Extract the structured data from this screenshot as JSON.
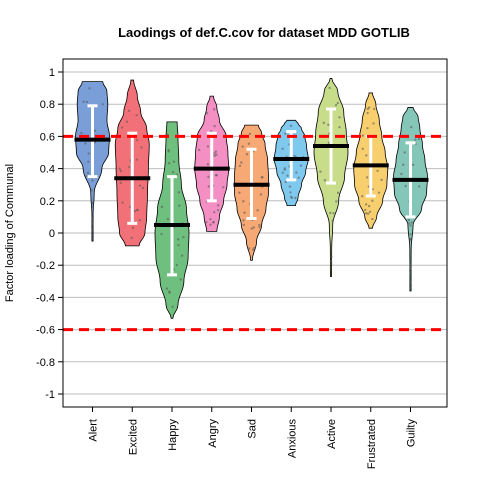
{
  "chart_data": {
    "type": "violin",
    "title": "Laodings of def.C.cov for dataset MDD GOTLIB",
    "ylabel": "Factor loading of Communal",
    "xlabel": "",
    "ylim": [
      -1.05,
      1.05
    ],
    "yticks": [
      -1,
      -0.8,
      -0.6,
      -0.4,
      -0.2,
      0,
      0.2,
      0.4,
      0.6,
      0.8,
      1
    ],
    "ytick_labels": [
      "-1",
      "-0.8",
      "-0.6",
      "-0.4",
      "-0.2",
      "0",
      "0.2",
      "0.4",
      "0.6",
      "0.8",
      "1"
    ],
    "grid": true,
    "reference_lines": [
      0.6,
      -0.6
    ],
    "reference_line_color": "#ff0000",
    "categories": [
      "Alert",
      "Excited",
      "Happy",
      "Angry",
      "Sad",
      "Anxious",
      "Active",
      "Frustrated",
      "Guilty"
    ],
    "series": [
      {
        "category": "Alert",
        "color": "#7a9fd8",
        "median": 0.58,
        "mean_minus_sd": 0.35,
        "mean_plus_sd": 0.79,
        "min": -0.05,
        "max": 0.94,
        "density_profile": [
          [
            -0.05,
            0.01
          ],
          [
            0.1,
            0.03
          ],
          [
            0.25,
            0.1
          ],
          [
            0.4,
            0.55
          ],
          [
            0.5,
            0.95
          ],
          [
            0.6,
            1.0
          ],
          [
            0.7,
            0.85
          ],
          [
            0.8,
            0.9
          ],
          [
            0.88,
            0.85
          ],
          [
            0.94,
            0.6
          ]
        ]
      },
      {
        "category": "Excited",
        "color": "#f27178",
        "median": 0.34,
        "mean_minus_sd": 0.06,
        "mean_plus_sd": 0.62,
        "min": -0.08,
        "max": 0.95,
        "density_profile": [
          [
            -0.08,
            0.4
          ],
          [
            0.0,
            0.75
          ],
          [
            0.1,
            0.85
          ],
          [
            0.25,
            0.9
          ],
          [
            0.4,
            0.95
          ],
          [
            0.55,
            1.0
          ],
          [
            0.65,
            0.85
          ],
          [
            0.75,
            0.5
          ],
          [
            0.85,
            0.3
          ],
          [
            0.95,
            0.08
          ]
        ]
      },
      {
        "category": "Happy",
        "color": "#6fbf7f",
        "median": 0.05,
        "mean_minus_sd": -0.26,
        "mean_plus_sd": 0.35,
        "min": -0.53,
        "max": 0.69,
        "density_profile": [
          [
            -0.53,
            0.05
          ],
          [
            -0.45,
            0.35
          ],
          [
            -0.3,
            0.7
          ],
          [
            -0.15,
            0.95
          ],
          [
            0.0,
            1.0
          ],
          [
            0.15,
            0.85
          ],
          [
            0.3,
            0.55
          ],
          [
            0.45,
            0.4
          ],
          [
            0.6,
            0.35
          ],
          [
            0.69,
            0.3
          ]
        ]
      },
      {
        "category": "Angry",
        "color": "#f48fc3",
        "median": 0.4,
        "mean_minus_sd": 0.2,
        "mean_plus_sd": 0.62,
        "min": 0.01,
        "max": 0.85,
        "density_profile": [
          [
            0.01,
            0.3
          ],
          [
            0.1,
            0.45
          ],
          [
            0.2,
            0.7
          ],
          [
            0.3,
            0.9
          ],
          [
            0.4,
            1.0
          ],
          [
            0.5,
            0.95
          ],
          [
            0.6,
            0.85
          ],
          [
            0.7,
            0.45
          ],
          [
            0.78,
            0.3
          ],
          [
            0.85,
            0.1
          ]
        ]
      },
      {
        "category": "Sad",
        "color": "#f6a875",
        "median": 0.3,
        "mean_minus_sd": 0.09,
        "mean_plus_sd": 0.52,
        "min": -0.17,
        "max": 0.67,
        "density_profile": [
          [
            -0.17,
            0.05
          ],
          [
            -0.05,
            0.3
          ],
          [
            0.05,
            0.6
          ],
          [
            0.15,
            0.85
          ],
          [
            0.25,
            1.0
          ],
          [
            0.35,
            1.0
          ],
          [
            0.45,
            0.95
          ],
          [
            0.55,
            0.8
          ],
          [
            0.62,
            0.6
          ],
          [
            0.67,
            0.4
          ]
        ]
      },
      {
        "category": "Anxious",
        "color": "#7fc8ee",
        "median": 0.46,
        "mean_minus_sd": 0.33,
        "mean_plus_sd": 0.63,
        "min": 0.17,
        "max": 0.7,
        "density_profile": [
          [
            0.17,
            0.25
          ],
          [
            0.22,
            0.4
          ],
          [
            0.3,
            0.6
          ],
          [
            0.38,
            0.85
          ],
          [
            0.46,
            1.0
          ],
          [
            0.54,
            0.9
          ],
          [
            0.6,
            0.8
          ],
          [
            0.65,
            0.6
          ],
          [
            0.68,
            0.4
          ],
          [
            0.7,
            0.25
          ]
        ]
      },
      {
        "category": "Active",
        "color": "#c7dd8a",
        "median": 0.54,
        "mean_minus_sd": 0.31,
        "mean_plus_sd": 0.77,
        "min": -0.27,
        "max": 0.96,
        "density_profile": [
          [
            -0.27,
            0.02
          ],
          [
            -0.1,
            0.04
          ],
          [
            0.05,
            0.1
          ],
          [
            0.2,
            0.45
          ],
          [
            0.35,
            0.8
          ],
          [
            0.5,
            1.0
          ],
          [
            0.62,
            0.9
          ],
          [
            0.75,
            0.75
          ],
          [
            0.88,
            0.4
          ],
          [
            0.96,
            0.05
          ]
        ]
      },
      {
        "category": "Frustrated",
        "color": "#f8cf6e",
        "median": 0.42,
        "mean_minus_sd": 0.23,
        "mean_plus_sd": 0.6,
        "min": 0.03,
        "max": 0.87,
        "density_profile": [
          [
            0.03,
            0.1
          ],
          [
            0.1,
            0.35
          ],
          [
            0.2,
            0.7
          ],
          [
            0.3,
            0.95
          ],
          [
            0.4,
            1.0
          ],
          [
            0.5,
            0.85
          ],
          [
            0.6,
            0.65
          ],
          [
            0.7,
            0.5
          ],
          [
            0.8,
            0.3
          ],
          [
            0.87,
            0.1
          ]
        ]
      },
      {
        "category": "Guilty",
        "color": "#84c6b8",
        "median": 0.33,
        "mean_minus_sd": 0.1,
        "mean_plus_sd": 0.56,
        "min": -0.36,
        "max": 0.78,
        "density_profile": [
          [
            -0.36,
            0.02
          ],
          [
            -0.1,
            0.04
          ],
          [
            0.05,
            0.15
          ],
          [
            0.15,
            0.65
          ],
          [
            0.25,
            0.95
          ],
          [
            0.35,
            1.0
          ],
          [
            0.45,
            0.85
          ],
          [
            0.55,
            0.7
          ],
          [
            0.65,
            0.55
          ],
          [
            0.72,
            0.45
          ],
          [
            0.78,
            0.15
          ]
        ]
      }
    ]
  }
}
